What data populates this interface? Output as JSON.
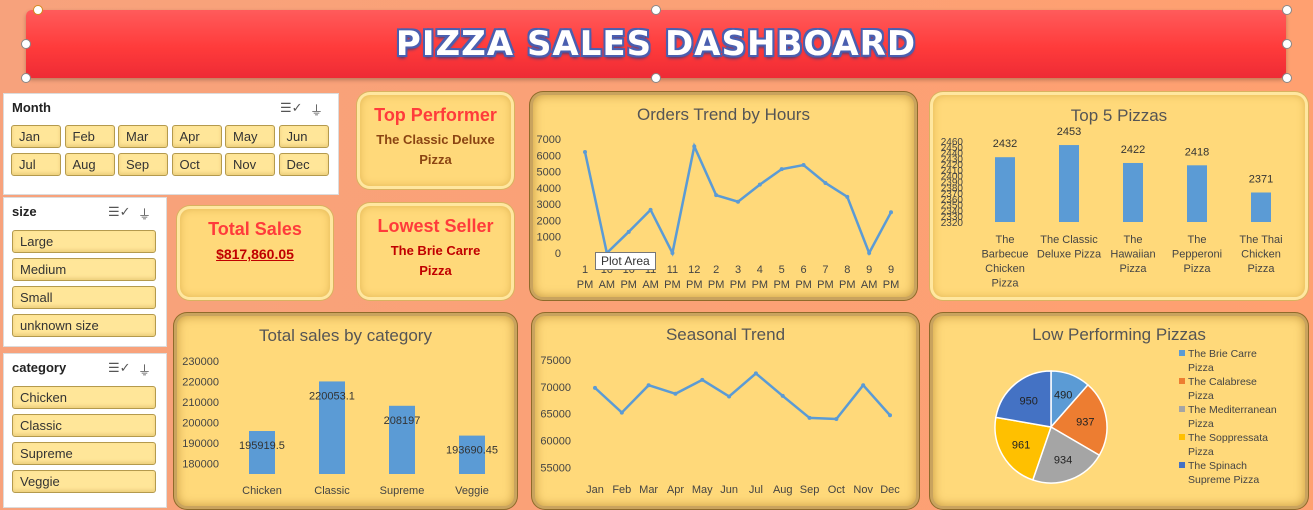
{
  "dashboard": {
    "title": "PIZZA SALES DASHBOARD"
  },
  "month_slicer": {
    "title": "Month",
    "items": [
      "Jan",
      "Feb",
      "Mar",
      "Apr",
      "May",
      "Jun",
      "Jul",
      "Aug",
      "Sep",
      "Oct",
      "Nov",
      "Dec"
    ]
  },
  "size_slicer": {
    "title": "size",
    "items": [
      "Large",
      "Medium",
      "Small",
      "unknown size"
    ]
  },
  "category_slicer": {
    "title": "category",
    "items": [
      "Chicken",
      "Classic",
      "Supreme",
      "Veggie"
    ]
  },
  "top_performer": {
    "heading": "Top Performer",
    "name": "The Classic Deluxe Pizza"
  },
  "lowest_seller": {
    "heading": "Lowest Seller",
    "name": "The Brie Carre Pizza"
  },
  "total_sales": {
    "heading": "Total Sales",
    "value": "$817,860.05"
  },
  "tooltip": "Plot Area",
  "colors": {
    "bar": "#5b9bd5",
    "title_red": "#ff3b3b",
    "card": "#ffd97a"
  },
  "chart_data": [
    {
      "id": "orders_trend",
      "type": "line",
      "title": "Orders Trend by Hours",
      "categories": [
        [
          "1",
          "PM"
        ],
        [
          "10",
          "AM"
        ],
        [
          "10",
          "PM"
        ],
        [
          "11",
          "AM"
        ],
        [
          "11",
          "PM"
        ],
        [
          "12",
          "PM"
        ],
        [
          "2",
          "PM"
        ],
        [
          "3",
          "PM"
        ],
        [
          "4",
          "PM"
        ],
        [
          "5",
          "PM"
        ],
        [
          "6",
          "PM"
        ],
        [
          "7",
          "PM"
        ],
        [
          "8",
          "PM"
        ],
        [
          "9",
          "AM"
        ],
        [
          "9",
          "PM"
        ]
      ],
      "values": [
        6200,
        0,
        1300,
        2650,
        0,
        6550,
        3550,
        3150,
        4200,
        5150,
        5400,
        4300,
        3450,
        0,
        2500
      ],
      "ylim": [
        0,
        7000
      ],
      "yticks": [
        0,
        1000,
        2000,
        3000,
        4000,
        5000,
        6000,
        7000
      ]
    },
    {
      "id": "top5",
      "type": "bar",
      "title": "Top 5 Pizzas",
      "categories": [
        [
          "The",
          "Barbecue",
          "Chicken",
          "Pizza"
        ],
        [
          "The Classic",
          "Deluxe Pizza"
        ],
        [
          "The",
          "Hawaiian",
          "Pizza"
        ],
        [
          "The",
          "Pepperoni",
          "Pizza"
        ],
        [
          "The Thai",
          "Chicken",
          "Pizza"
        ]
      ],
      "values": [
        2432,
        2453,
        2422,
        2418,
        2371
      ],
      "ylim": [
        2320,
        2460
      ],
      "yticks": [
        2320,
        2330,
        2340,
        2350,
        2360,
        2370,
        2380,
        2390,
        2400,
        2410,
        2420,
        2430,
        2440,
        2450,
        2460
      ]
    },
    {
      "id": "category_sales",
      "type": "bar",
      "title": "Total sales by category",
      "categories": [
        "Chicken",
        "Classic",
        "Supreme",
        "Veggie"
      ],
      "values": [
        195919.5,
        220053.1,
        208197,
        193690.45
      ],
      "ylim": [
        175000,
        230000
      ],
      "yticks": [
        180000,
        190000,
        200000,
        210000,
        220000,
        230000
      ]
    },
    {
      "id": "seasonal",
      "type": "line",
      "title": "Seasonal Trend",
      "categories": [
        "Jan",
        "Feb",
        "Mar",
        "Apr",
        "May",
        "Jun",
        "Jul",
        "Aug",
        "Sep",
        "Oct",
        "Nov",
        "Dec"
      ],
      "values": [
        69800,
        65200,
        70300,
        68700,
        71300,
        68200,
        72500,
        68300,
        64200,
        64000,
        70300,
        64700
      ],
      "ylim": [
        53000,
        75000
      ],
      "yticks": [
        55000,
        60000,
        65000,
        70000,
        75000
      ]
    },
    {
      "id": "low_perf",
      "type": "pie",
      "title": "Low Performing Pizzas",
      "legend": [
        "The Brie Carre Pizza",
        "The Calabrese Pizza",
        "The Mediterranean Pizza",
        "The Soppressata Pizza",
        "The Spinach Supreme Pizza"
      ],
      "values": [
        490,
        937,
        934,
        961,
        950
      ],
      "colors": [
        "#5b9bd5",
        "#ed7d31",
        "#a5a5a5",
        "#ffc000",
        "#4472c4"
      ]
    }
  ]
}
